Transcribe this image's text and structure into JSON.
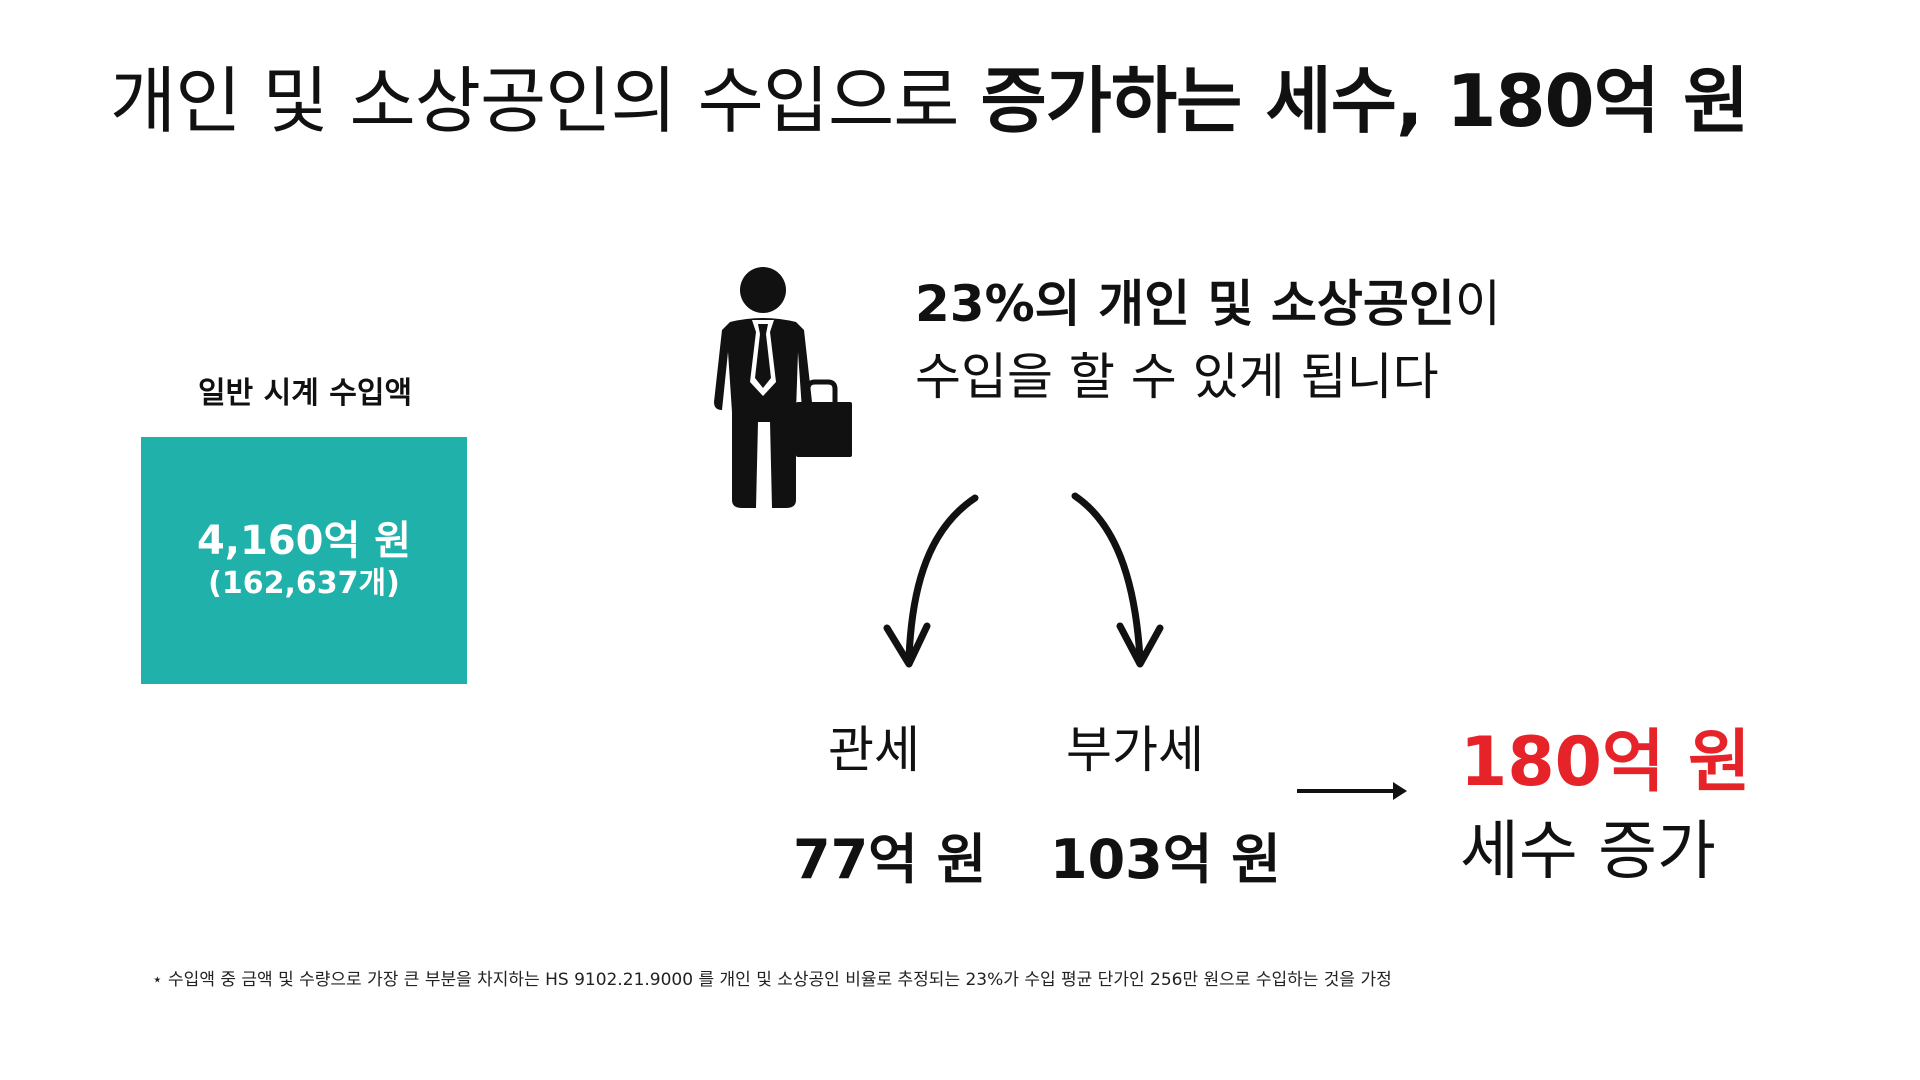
{
  "colors": {
    "teal": "#20b2aa",
    "accent_red": "#e52329",
    "text": "#111111"
  },
  "title": {
    "light": "개인 및 소상공인의 수입으로 ",
    "bold": "증가하는 세수, 180억 원"
  },
  "left_box": {
    "label": "일반 시계 수입액",
    "amount": "4,160억 원",
    "count": "(162,637개)"
  },
  "icons": {
    "person": "businessman-with-briefcase-icon",
    "arrow": "right-arrow-icon"
  },
  "headline": {
    "bold_part": "23%의 개인 및 소상공인",
    "normal_part": "이",
    "line2": "수입을 할 수 있게 됩니다"
  },
  "taxes": {
    "customs": {
      "label": "관세",
      "value": "77억 원"
    },
    "vat": {
      "label": "부가세",
      "value": "103억 원"
    }
  },
  "result": {
    "amount": "180억 원",
    "text": "세수 증가"
  },
  "footnote": "⋆ 수입액 중 금액 및 수량으로 가장 큰 부분을 차지하는 HS 9102.21.9000 를 개인 및 소상공인 비율로 추정되는 23%가 수입 평균 단가인 256만 원으로 수입하는 것을 가정"
}
